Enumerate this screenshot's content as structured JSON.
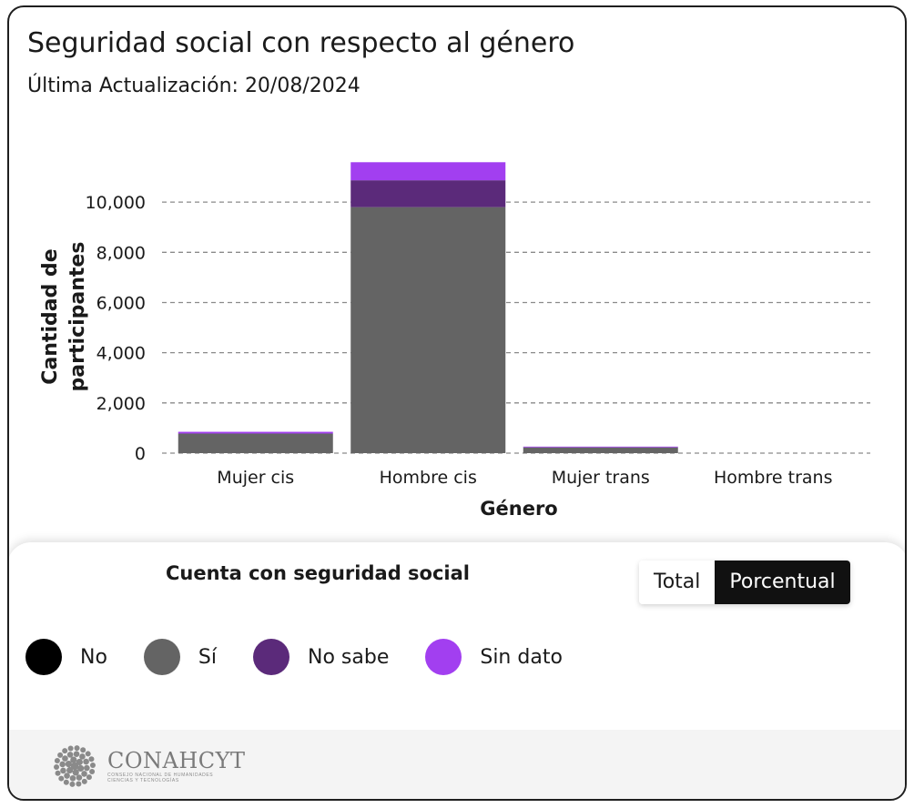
{
  "header": {
    "title": "Seguridad social con respecto al género",
    "subtitle": "Última Actualización: 20/08/2024"
  },
  "chart_data": {
    "type": "bar",
    "stacked": true,
    "title": "Seguridad social con respecto al género",
    "xlabel": "Género",
    "ylabel": "Cantidad de participantes",
    "categories": [
      "Mujer cis",
      "Hombre cis",
      "Mujer trans",
      "Hombre trans"
    ],
    "series": [
      {
        "name": "No",
        "color": "#000000",
        "values": [
          0,
          0,
          0,
          0
        ]
      },
      {
        "name": "Sí",
        "color": "#646464",
        "values": [
          780,
          9800,
          230,
          0
        ]
      },
      {
        "name": "No sabe",
        "color": "#5b2a7a",
        "values": [
          0,
          1070,
          0,
          0
        ]
      },
      {
        "name": "Sin dato",
        "color": "#a23ff0",
        "values": [
          70,
          720,
          30,
          0
        ]
      }
    ],
    "yticks": [
      "0",
      "2,000",
      "4,000",
      "6,000",
      "8,000",
      "10,000"
    ],
    "ylim": [
      0,
      11600
    ],
    "grid": true,
    "legend_position": "bottom"
  },
  "legend": {
    "title": "Cuenta con seguridad social",
    "items": [
      {
        "label": "No",
        "color": "#000000"
      },
      {
        "label": "Sí",
        "color": "#646464"
      },
      {
        "label": "No sabe",
        "color": "#5b2a7a"
      },
      {
        "label": "Sin dato",
        "color": "#a23ff0"
      }
    ]
  },
  "toggle": {
    "total_label": "Total",
    "percent_label": "Porcentual",
    "selected": "Porcentual"
  },
  "footer": {
    "logo_name": "CONAHCYT",
    "logo_sub_1": "CONSEJO NACIONAL DE HUMANIDADES",
    "logo_sub_2": "CIENCIAS Y TECNOLOGÍAS"
  }
}
